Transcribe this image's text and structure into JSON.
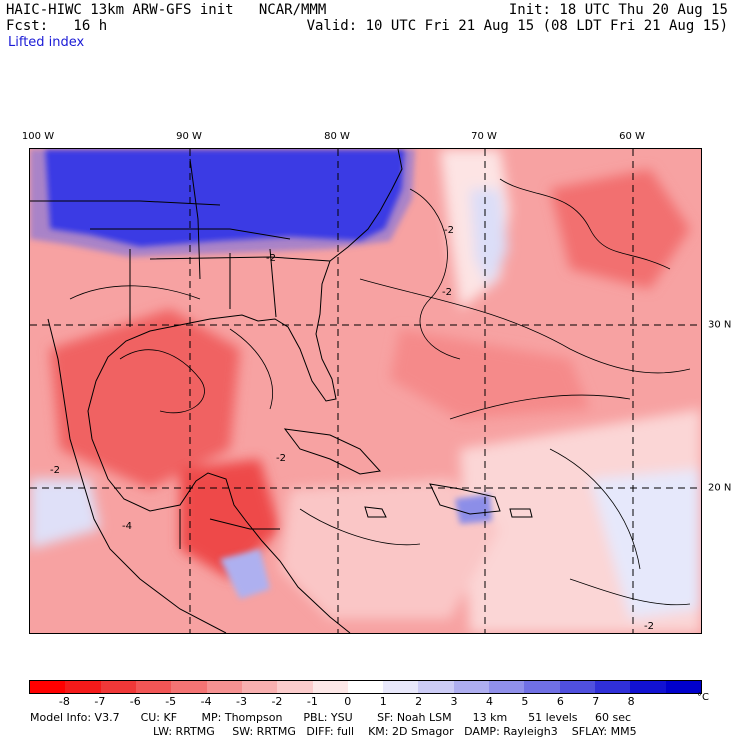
{
  "header": {
    "left_line1": "HAIC-HIWC 13km ARW-GFS init   NCAR/MMM",
    "left_line2": "Fcst:   16 h",
    "field_name": "Lifted index",
    "right_line1": "Init: 18 UTC Thu 20 Aug 15",
    "right_line2": "Valid: 10 UTC Fri 21 Aug 15 (08 LDT Fri 21 Aug 15)"
  },
  "map": {
    "longitude_labels": [
      "100 W",
      "90 W",
      "80 W",
      "70 W",
      "60 W"
    ],
    "latitude_labels": [
      "30 N",
      "20 N"
    ],
    "contour_labels": [
      "-2",
      "-2",
      "-2",
      "-2",
      "-4",
      "-2",
      "-2"
    ],
    "colors": {
      "stable_blue": "#0000e8",
      "deep_red": "#f01818",
      "land_boundary": "#000000"
    }
  },
  "colorbar": {
    "colors": [
      "#ff0000",
      "#f51a1a",
      "#f03838",
      "#f25656",
      "#f47474",
      "#f69292",
      "#f8b0b0",
      "#fbcccc",
      "#fde8e8",
      "#ffffff",
      "#e8e8fb",
      "#ccccf6",
      "#aeaef0",
      "#9090ea",
      "#7070e4",
      "#5050de",
      "#3030d8",
      "#1212d2",
      "#0000cc"
    ],
    "ticks": [
      "-8",
      "-7",
      "-6",
      "-5",
      "-4",
      "-3",
      "-2",
      "-1",
      "0",
      "1",
      "2",
      "3",
      "4",
      "5",
      "6",
      "7",
      "8"
    ],
    "unit": "°C"
  },
  "footer": {
    "row1": [
      "Model Info: V3.7",
      "CU: KF",
      "MP: Thompson",
      "PBL: YSU",
      "SF: Noah LSM",
      "13 km",
      "51 levels",
      "60 sec"
    ],
    "row2": [
      "LW: RRTMG",
      "SW: RRTMG",
      "DIFF: full",
      "KM: 2D Smagor",
      "DAMP: Rayleigh3",
      "SFLAY: MM5"
    ]
  }
}
